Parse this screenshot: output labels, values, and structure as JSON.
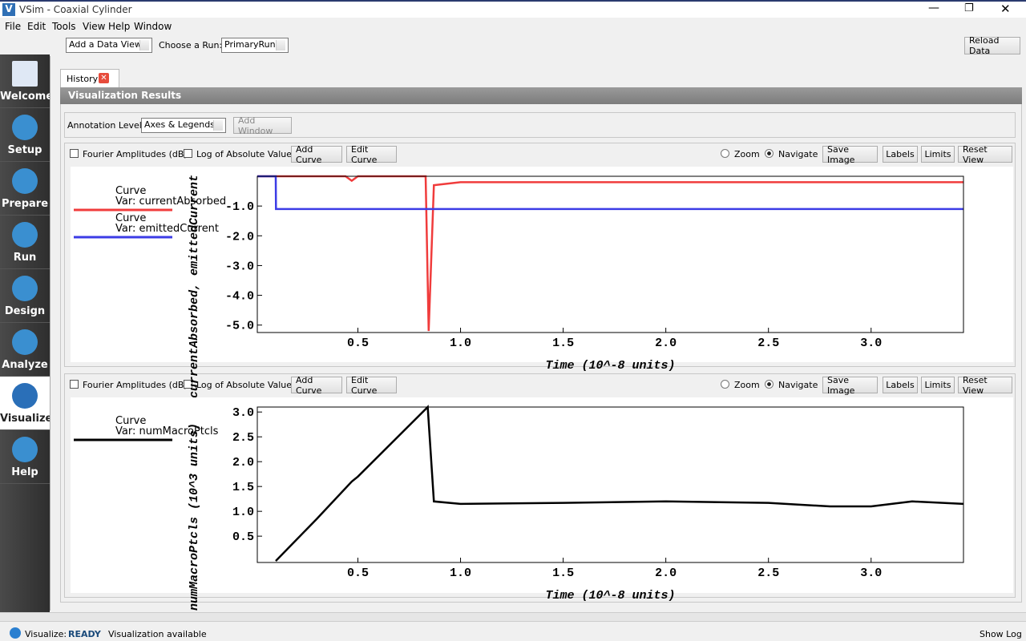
{
  "window": {
    "title": "VSim - Coaxial Cylinder",
    "menu": [
      "File",
      "Edit",
      "Tools",
      "View",
      "Help",
      "Window"
    ]
  },
  "toolbar": {
    "data_view": "Add a Data View",
    "run_label": "Choose a Run:",
    "run": "PrimaryRun",
    "reload": "Reload Data"
  },
  "sidebar": [
    "Welcome",
    "Setup",
    "Prepare",
    "Run",
    "Design",
    "Analyze",
    "Visualize",
    "Help"
  ],
  "tab": "History",
  "panel_title": "Visualization Results",
  "annotation": {
    "label": "Annotation Level:",
    "value": "Axes & Legends",
    "add_window": "Add Window"
  },
  "plot_controls": {
    "fourier": "Fourier Amplitudes (dB)",
    "log": "Log of Absolute Value",
    "add_curve": "Add Curve",
    "edit_curve": "Edit Curve",
    "zoom": "Zoom",
    "navigate": "Navigate",
    "save": "Save Image",
    "labels": "Labels",
    "limits": "Limits",
    "reset": "Reset View"
  },
  "charts": [
    {
      "type": "line",
      "ylabel": "currentAbsorbed, emittedCurrent",
      "xlabel": "Time (10^-8 units)",
      "legend_label": "Curve",
      "x": [
        0.01,
        0.1,
        0.101,
        0.44,
        0.47,
        0.5,
        0.83,
        0.845,
        0.87,
        1.0,
        1.5,
        2.0,
        2.5,
        3.0,
        3.45
      ],
      "series": [
        {
          "name": "Var: currentAbsorbed",
          "color": "#f03c3c",
          "values": [
            0,
            0,
            0,
            0,
            -0.15,
            0,
            0,
            -5.2,
            -0.3,
            -0.2,
            -0.2,
            -0.2,
            -0.2,
            -0.2,
            -0.2
          ]
        },
        {
          "name": "Var: emittedCurrent",
          "color": "#3c3ce6",
          "values": [
            0,
            0,
            -1.1,
            -1.1,
            -1.1,
            -1.1,
            -1.1,
            -1.1,
            -1.1,
            -1.1,
            -1.1,
            -1.1,
            -1.1,
            -1.1,
            -1.1
          ]
        }
      ],
      "xlim": [
        0.01,
        3.45
      ],
      "ylim": [
        -5.25,
        0
      ],
      "xticks": [
        0.5,
        {
          "value": 1,
          "label": "1.0"
        },
        1.5,
        {
          "value": 2,
          "label": "2.0"
        },
        2.5,
        {
          "value": 3,
          "label": "3.0"
        }
      ],
      "yticks": [
        {
          "value": -1,
          "label": "-1.0"
        },
        {
          "value": -2,
          "label": "-2.0"
        },
        {
          "value": -3,
          "label": "-3.0"
        },
        {
          "value": -4,
          "label": "-4.0"
        },
        {
          "value": -5,
          "label": "-5.0"
        }
      ]
    },
    {
      "type": "line",
      "ylabel": "numMacroPtcls (10^3 units)",
      "xlabel": "Time (10^-8 units)",
      "legend_label": "Curve",
      "x": [
        0.1,
        0.3,
        0.47,
        0.5,
        0.84,
        0.87,
        1.0,
        1.5,
        2.0,
        2.5,
        2.8,
        3.0,
        3.2,
        3.45
      ],
      "series": [
        {
          "name": "Var: numMacroPtcls",
          "color": "#000000",
          "values": [
            0,
            0.85,
            1.6,
            1.7,
            3.1,
            1.2,
            1.15,
            1.17,
            1.2,
            1.17,
            1.1,
            1.1,
            1.2,
            1.15
          ]
        }
      ],
      "xlim": [
        0.01,
        3.45
      ],
      "ylim": [
        -0.03,
        3.1
      ],
      "xticks": [
        0.5,
        {
          "value": 1,
          "label": "1.0"
        },
        1.5,
        {
          "value": 2,
          "label": "2.0"
        },
        2.5,
        {
          "value": 3,
          "label": "3.0"
        }
      ],
      "yticks": [
        0.5,
        {
          "value": 1,
          "label": "1.0"
        },
        1.5,
        {
          "value": 2,
          "label": "2.0"
        },
        2.5,
        {
          "value": 3,
          "label": "3.0"
        }
      ]
    }
  ],
  "status": {
    "label": "Visualize:",
    "state": "READY",
    "message": "Visualization available",
    "show_log": "Show Log"
  }
}
